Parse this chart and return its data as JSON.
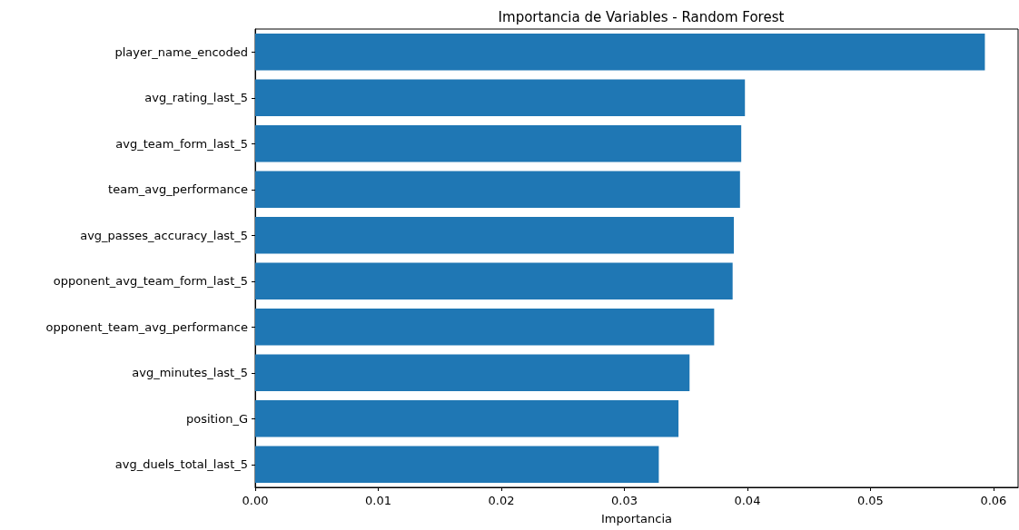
{
  "chart_data": {
    "type": "bar",
    "orientation": "horizontal",
    "title": "Importancia de Variables - Random Forest",
    "xlabel": "Importancia",
    "categories": [
      "player_name_encoded",
      "avg_rating_last_5",
      "avg_team_form_last_5",
      "team_avg_performance",
      "avg_passes_accuracy_last_5",
      "opponent_avg_team_form_last_5",
      "opponent_team_avg_performance",
      "avg_minutes_last_5",
      "position_G",
      "avg_duels_total_last_5"
    ],
    "values": [
      0.0593,
      0.0398,
      0.0395,
      0.0394,
      0.0389,
      0.0388,
      0.0373,
      0.0353,
      0.0344,
      0.0328
    ],
    "color": "#1f77b4",
    "xlim": [
      0,
      0.062
    ],
    "xticks": [
      {
        "value": 0,
        "label": "0.00"
      },
      {
        "value": 0.01,
        "label": "0.01"
      },
      {
        "value": 0.02,
        "label": "0.02"
      },
      {
        "value": 0.03,
        "label": "0.03"
      },
      {
        "value": 0.04,
        "label": "0.04"
      },
      {
        "value": 0.05,
        "label": "0.05"
      },
      {
        "value": 0.06,
        "label": "0.06"
      }
    ],
    "grid": false
  }
}
